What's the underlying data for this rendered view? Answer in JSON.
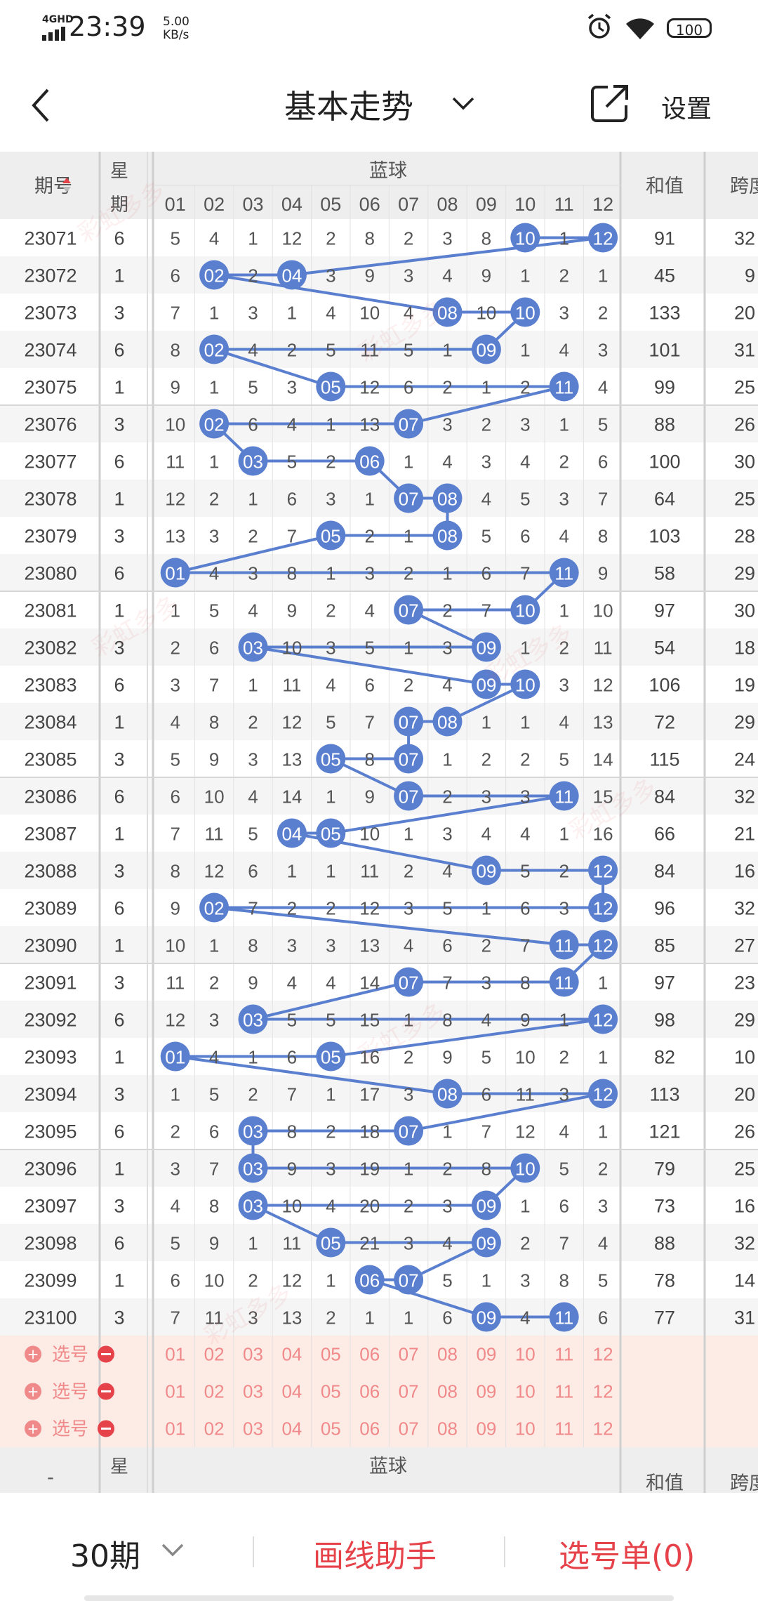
{
  "status_bar": {
    "network": "4GHD",
    "time": "23:39",
    "speed_value": "5.00",
    "speed_unit": "KB/s",
    "battery": "100",
    "icons": [
      "signal-icon",
      "alarm-icon",
      "wifi-icon",
      "battery-icon"
    ]
  },
  "nav": {
    "title": "基本走势",
    "settings_label": "设置",
    "icons": [
      "back-icon",
      "chevron-down-icon",
      "share-icon"
    ]
  },
  "table": {
    "header": {
      "issue": "期号",
      "weekday_top": "星",
      "weekday_bottom": "期",
      "blue_group": "蓝球",
      "sum": "和值",
      "span": "跨度",
      "blue_columns": [
        "01",
        "02",
        "03",
        "04",
        "05",
        "06",
        "07",
        "08",
        "09",
        "10",
        "11",
        "12"
      ]
    },
    "rows": [
      {
        "issue": "23071",
        "weekday": "6",
        "blue": [
          "5",
          "4",
          "1",
          "12",
          "2",
          "8",
          "2",
          "3",
          "8",
          "10",
          "1",
          "12"
        ],
        "drawn": [
          10,
          12
        ],
        "sum": "91",
        "span": "32"
      },
      {
        "issue": "23072",
        "weekday": "1",
        "blue": [
          "6",
          "02",
          "2",
          "04",
          "3",
          "9",
          "3",
          "4",
          "9",
          "1",
          "2",
          "1"
        ],
        "drawn": [
          2,
          4
        ],
        "sum": "45",
        "span": "9"
      },
      {
        "issue": "23073",
        "weekday": "3",
        "blue": [
          "7",
          "1",
          "3",
          "1",
          "4",
          "10",
          "4",
          "08",
          "10",
          "10",
          "3",
          "2"
        ],
        "drawn": [
          8,
          10
        ],
        "sum": "133",
        "span": "20"
      },
      {
        "issue": "23074",
        "weekday": "6",
        "blue": [
          "8",
          "02",
          "4",
          "2",
          "5",
          "11",
          "5",
          "1",
          "09",
          "1",
          "4",
          "3"
        ],
        "drawn": [
          2,
          9
        ],
        "sum": "101",
        "span": "31"
      },
      {
        "issue": "23075",
        "weekday": "1",
        "blue": [
          "9",
          "1",
          "5",
          "3",
          "05",
          "12",
          "6",
          "2",
          "1",
          "2",
          "11",
          "4"
        ],
        "drawn": [
          5,
          11
        ],
        "sum": "99",
        "span": "25"
      },
      {
        "issue": "23076",
        "weekday": "3",
        "blue": [
          "10",
          "02",
          "6",
          "4",
          "1",
          "13",
          "07",
          "3",
          "2",
          "3",
          "1",
          "5"
        ],
        "drawn": [
          2,
          7
        ],
        "sum": "88",
        "span": "26"
      },
      {
        "issue": "23077",
        "weekday": "6",
        "blue": [
          "11",
          "1",
          "03",
          "5",
          "2",
          "06",
          "1",
          "4",
          "3",
          "4",
          "2",
          "6"
        ],
        "drawn": [
          3,
          6
        ],
        "sum": "100",
        "span": "30"
      },
      {
        "issue": "23078",
        "weekday": "1",
        "blue": [
          "12",
          "2",
          "1",
          "6",
          "3",
          "1",
          "07",
          "08",
          "4",
          "5",
          "3",
          "7"
        ],
        "drawn": [
          7,
          8
        ],
        "sum": "64",
        "span": "25"
      },
      {
        "issue": "23079",
        "weekday": "3",
        "blue": [
          "13",
          "3",
          "2",
          "7",
          "05",
          "2",
          "1",
          "08",
          "5",
          "6",
          "4",
          "8"
        ],
        "drawn": [
          5,
          8
        ],
        "sum": "103",
        "span": "28"
      },
      {
        "issue": "23080",
        "weekday": "6",
        "blue": [
          "01",
          "4",
          "3",
          "8",
          "1",
          "3",
          "2",
          "1",
          "6",
          "7",
          "11",
          "9"
        ],
        "drawn": [
          1,
          11
        ],
        "sum": "58",
        "span": "29"
      },
      {
        "issue": "23081",
        "weekday": "1",
        "blue": [
          "1",
          "5",
          "4",
          "9",
          "2",
          "4",
          "07",
          "2",
          "7",
          "10",
          "1",
          "10"
        ],
        "drawn": [
          7,
          10
        ],
        "sum": "97",
        "span": "30"
      },
      {
        "issue": "23082",
        "weekday": "3",
        "blue": [
          "2",
          "6",
          "03",
          "10",
          "3",
          "5",
          "1",
          "3",
          "09",
          "1",
          "2",
          "11"
        ],
        "drawn": [
          3,
          9
        ],
        "sum": "54",
        "span": "18"
      },
      {
        "issue": "23083",
        "weekday": "6",
        "blue": [
          "3",
          "7",
          "1",
          "11",
          "4",
          "6",
          "2",
          "4",
          "09",
          "10",
          "3",
          "12"
        ],
        "drawn": [
          9,
          10
        ],
        "sum": "106",
        "span": "19"
      },
      {
        "issue": "23084",
        "weekday": "1",
        "blue": [
          "4",
          "8",
          "2",
          "12",
          "5",
          "7",
          "07",
          "08",
          "1",
          "1",
          "4",
          "13"
        ],
        "drawn": [
          7,
          8
        ],
        "sum": "72",
        "span": "29"
      },
      {
        "issue": "23085",
        "weekday": "3",
        "blue": [
          "5",
          "9",
          "3",
          "13",
          "05",
          "8",
          "07",
          "1",
          "2",
          "2",
          "5",
          "14"
        ],
        "drawn": [
          5,
          7
        ],
        "sum": "115",
        "span": "24"
      },
      {
        "issue": "23086",
        "weekday": "6",
        "blue": [
          "6",
          "10",
          "4",
          "14",
          "1",
          "9",
          "07",
          "2",
          "3",
          "3",
          "11",
          "15"
        ],
        "drawn": [
          7,
          11
        ],
        "sum": "84",
        "span": "32"
      },
      {
        "issue": "23087",
        "weekday": "1",
        "blue": [
          "7",
          "11",
          "5",
          "04",
          "05",
          "10",
          "1",
          "3",
          "4",
          "4",
          "1",
          "16"
        ],
        "drawn": [
          4,
          5
        ],
        "sum": "66",
        "span": "21"
      },
      {
        "issue": "23088",
        "weekday": "3",
        "blue": [
          "8",
          "12",
          "6",
          "1",
          "1",
          "11",
          "2",
          "4",
          "09",
          "5",
          "2",
          "12"
        ],
        "drawn": [
          9,
          12
        ],
        "sum": "84",
        "span": "16"
      },
      {
        "issue": "23089",
        "weekday": "6",
        "blue": [
          "9",
          "02",
          "7",
          "2",
          "2",
          "12",
          "3",
          "5",
          "1",
          "6",
          "3",
          "12"
        ],
        "drawn": [
          2,
          12
        ],
        "sum": "96",
        "span": "32"
      },
      {
        "issue": "23090",
        "weekday": "1",
        "blue": [
          "10",
          "1",
          "8",
          "3",
          "3",
          "13",
          "4",
          "6",
          "2",
          "7",
          "11",
          "12"
        ],
        "drawn": [
          11,
          12
        ],
        "sum": "85",
        "span": "27"
      },
      {
        "issue": "23091",
        "weekday": "3",
        "blue": [
          "11",
          "2",
          "9",
          "4",
          "4",
          "14",
          "07",
          "7",
          "3",
          "8",
          "11",
          "1"
        ],
        "drawn": [
          7,
          11
        ],
        "sum": "97",
        "span": "23"
      },
      {
        "issue": "23092",
        "weekday": "6",
        "blue": [
          "12",
          "3",
          "03",
          "5",
          "5",
          "15",
          "1",
          "8",
          "4",
          "9",
          "1",
          "12"
        ],
        "drawn": [
          3,
          12
        ],
        "sum": "98",
        "span": "29"
      },
      {
        "issue": "23093",
        "weekday": "1",
        "blue": [
          "01",
          "4",
          "1",
          "6",
          "05",
          "16",
          "2",
          "9",
          "5",
          "10",
          "2",
          "1"
        ],
        "drawn": [
          1,
          5
        ],
        "sum": "82",
        "span": "10"
      },
      {
        "issue": "23094",
        "weekday": "3",
        "blue": [
          "1",
          "5",
          "2",
          "7",
          "1",
          "17",
          "3",
          "08",
          "6",
          "11",
          "3",
          "12"
        ],
        "drawn": [
          8,
          12
        ],
        "sum": "113",
        "span": "20"
      },
      {
        "issue": "23095",
        "weekday": "6",
        "blue": [
          "2",
          "6",
          "03",
          "8",
          "2",
          "18",
          "07",
          "1",
          "7",
          "12",
          "4",
          "1"
        ],
        "drawn": [
          3,
          7
        ],
        "sum": "121",
        "span": "26"
      },
      {
        "issue": "23096",
        "weekday": "1",
        "blue": [
          "3",
          "7",
          "03",
          "9",
          "3",
          "19",
          "1",
          "2",
          "8",
          "10",
          "5",
          "2"
        ],
        "drawn": [
          3,
          10
        ],
        "sum": "79",
        "span": "25"
      },
      {
        "issue": "23097",
        "weekday": "3",
        "blue": [
          "4",
          "8",
          "03",
          "10",
          "4",
          "20",
          "2",
          "3",
          "09",
          "1",
          "6",
          "3"
        ],
        "drawn": [
          3,
          9
        ],
        "sum": "73",
        "span": "16"
      },
      {
        "issue": "23098",
        "weekday": "6",
        "blue": [
          "5",
          "9",
          "1",
          "11",
          "05",
          "21",
          "3",
          "4",
          "09",
          "2",
          "7",
          "4"
        ],
        "drawn": [
          5,
          9
        ],
        "sum": "88",
        "span": "32"
      },
      {
        "issue": "23099",
        "weekday": "1",
        "blue": [
          "6",
          "10",
          "2",
          "12",
          "1",
          "06",
          "07",
          "5",
          "1",
          "3",
          "8",
          "5"
        ],
        "drawn": [
          6,
          7
        ],
        "sum": "78",
        "span": "14"
      },
      {
        "issue": "23100",
        "weekday": "3",
        "blue": [
          "7",
          "11",
          "3",
          "13",
          "2",
          "1",
          "1",
          "6",
          "09",
          "4",
          "11",
          "6"
        ],
        "drawn": [
          9,
          11
        ],
        "sum": "77",
        "span": "31"
      }
    ],
    "picker_rows": [
      {
        "label": "选号",
        "numbers": [
          "01",
          "02",
          "03",
          "04",
          "05",
          "06",
          "07",
          "08",
          "09",
          "10",
          "11",
          "12"
        ]
      },
      {
        "label": "选号",
        "numbers": [
          "01",
          "02",
          "03",
          "04",
          "05",
          "06",
          "07",
          "08",
          "09",
          "10",
          "11",
          "12"
        ]
      },
      {
        "label": "选号",
        "numbers": [
          "01",
          "02",
          "03",
          "04",
          "05",
          "06",
          "07",
          "08",
          "09",
          "10",
          "11",
          "12"
        ]
      }
    ],
    "footer_issue": "-",
    "watermark": "彩虹多多",
    "colors": {
      "ball": "#5b7fcf",
      "line": "#5b7fcf",
      "red": "#e6424a",
      "picker_bg": "#fdece6",
      "header_bg": "#eeeeee"
    }
  },
  "bottom_bar": {
    "period_label": "30期",
    "helper_label": "画线助手",
    "picklist_label": "选号单(0)"
  }
}
